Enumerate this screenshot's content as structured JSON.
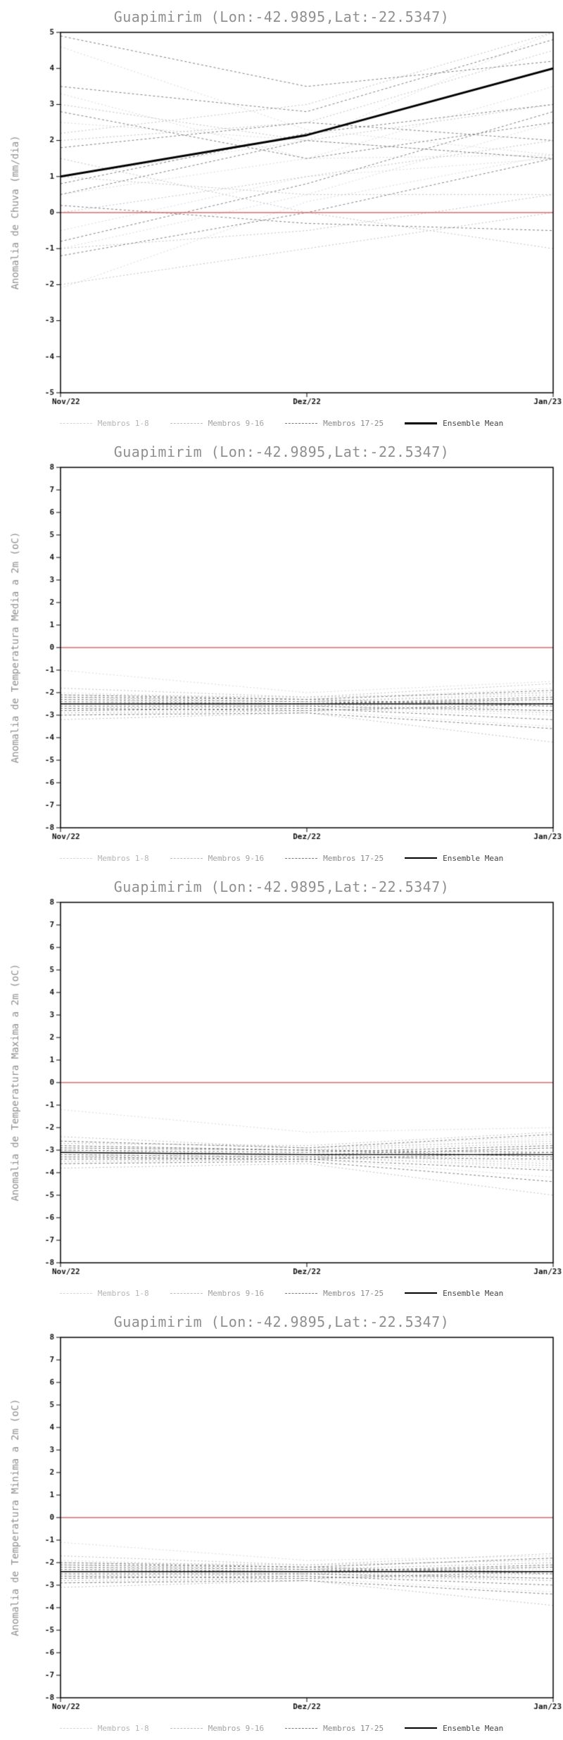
{
  "chart_data": [
    {
      "type": "line",
      "title": "Guapimirim (Lon:-42.9895,Lat:-22.5347)",
      "ylabel": "Anomalia de Chuva (mm/dia)",
      "x": [
        "Nov/22",
        "Dez/22",
        "Jan/23"
      ],
      "ylim": [
        -5,
        5
      ],
      "y_tick_step": 1,
      "grid": false,
      "legend_position": "bottom",
      "zero_line": {
        "value": 0,
        "color": "#d96a6a"
      },
      "groups": [
        {
          "label": "Membros 1-8",
          "color": "#d6d6d6",
          "dash": [
            2,
            3
          ],
          "label_color": "#b5b5b5",
          "members": [
            [
              3.3,
              1.5,
              1.6
            ],
            [
              -2.1,
              0.3,
              1.6
            ],
            [
              1.0,
              2.0,
              5.0
            ],
            [
              -1.0,
              0.5,
              2.5
            ],
            [
              2.5,
              2.0,
              1.5
            ],
            [
              0.5,
              1.5,
              3.5
            ],
            [
              -0.5,
              1.0,
              1.5
            ],
            [
              4.6,
              2.3,
              1.6
            ]
          ]
        },
        {
          "label": "Membros 9-16",
          "color": "#bdbdbd",
          "dash": [
            2,
            3
          ],
          "label_color": "#a3a3a3",
          "members": [
            [
              2.0,
              2.5,
              4.5
            ],
            [
              1.5,
              0.0,
              -1.0
            ],
            [
              -1.0,
              -0.5,
              0.5
            ],
            [
              0.0,
              1.0,
              2.0
            ],
            [
              3.0,
              2.0,
              3.0
            ],
            [
              -2.0,
              -1.0,
              0.0
            ],
            [
              1.0,
              0.5,
              0.5
            ],
            [
              2.2,
              3.0,
              5.0
            ]
          ]
        },
        {
          "label": "Membros 17-25",
          "color": "#7d7d7d",
          "dash": [
            3,
            3
          ],
          "label_color": "#8a8a8a",
          "members": [
            [
              4.9,
              3.5,
              4.2
            ],
            [
              0.8,
              2.2,
              3.0
            ],
            [
              -1.2,
              0.0,
              1.5
            ],
            [
              2.8,
              1.5,
              2.5
            ],
            [
              0.2,
              -0.3,
              -0.5
            ],
            [
              1.8,
              2.5,
              2.0
            ],
            [
              -0.8,
              0.8,
              2.8
            ],
            [
              3.5,
              2.8,
              4.8
            ],
            [
              0.5,
              2.0,
              1.5
            ]
          ]
        }
      ],
      "mean": {
        "label": "Ensemble Mean",
        "color": "#000000",
        "width": 3,
        "sample_width": 3,
        "label_color": "#444444",
        "values": [
          1.0,
          2.15,
          4.0
        ]
      }
    },
    {
      "type": "line",
      "title": "Guapimirim (Lon:-42.9895,Lat:-22.5347)",
      "ylabel": "Anomalia de Temperatura Media a 2m (oC)",
      "x": [
        "Nov/22",
        "Dez/22",
        "Jan/23"
      ],
      "ylim": [
        -8,
        8
      ],
      "y_tick_step": 1,
      "grid": false,
      "legend_position": "bottom",
      "zero_line": {
        "value": 0,
        "color": "#d96a6a"
      },
      "groups": [
        {
          "label": "Membros 1-8",
          "color": "#d6d6d6",
          "dash": [
            2,
            3
          ],
          "label_color": "#b5b5b5",
          "members": [
            [
              -1.0,
              -2.0,
              -1.5
            ],
            [
              -2.2,
              -2.4,
              -2.0
            ],
            [
              -2.5,
              -2.5,
              -2.6
            ],
            [
              -2.8,
              -2.6,
              -2.2
            ],
            [
              -3.0,
              -2.8,
              -3.5
            ],
            [
              -2.0,
              -2.3,
              -1.8
            ],
            [
              -2.4,
              -2.5,
              -2.4
            ],
            [
              -2.6,
              -2.7,
              -3.0
            ]
          ]
        },
        {
          "label": "Membros 9-16",
          "color": "#bdbdbd",
          "dash": [
            2,
            3
          ],
          "label_color": "#a3a3a3",
          "members": [
            [
              -2.1,
              -2.2,
              -1.6
            ],
            [
              -2.3,
              -2.5,
              -2.8
            ],
            [
              -2.7,
              -2.6,
              -2.3
            ],
            [
              -2.9,
              -2.8,
              -2.6
            ],
            [
              -2.2,
              -2.4,
              -2.1
            ],
            [
              -2.5,
              -2.6,
              -2.9
            ],
            [
              -3.2,
              -2.9,
              -4.2
            ],
            [
              -1.8,
              -2.2,
              -2.0
            ]
          ]
        },
        {
          "label": "Membros 17-25",
          "color": "#7d7d7d",
          "dash": [
            3,
            3
          ],
          "label_color": "#8a8a8a",
          "members": [
            [
              -2.4,
              -2.5,
              -2.2
            ],
            [
              -2.6,
              -2.6,
              -2.8
            ],
            [
              -2.3,
              -2.4,
              -2.5
            ],
            [
              -2.8,
              -2.7,
              -3.2
            ],
            [
              -2.5,
              -2.5,
              -2.3
            ],
            [
              -2.2,
              -2.3,
              -2.6
            ],
            [
              -2.7,
              -2.8,
              -2.5
            ],
            [
              -3.0,
              -2.9,
              -3.6
            ],
            [
              -2.1,
              -2.3,
              -1.9
            ]
          ]
        }
      ],
      "mean": {
        "label": "Ensemble Mean",
        "color": "#000000",
        "width": 1.4,
        "sample_width": 2,
        "label_color": "#444444",
        "values": [
          -2.5,
          -2.5,
          -2.5
        ]
      }
    },
    {
      "type": "line",
      "title": "Guapimirim (Lon:-42.9895,Lat:-22.5347)",
      "ylabel": "Anomalia de Temperatura Maxima a 2m (oC)",
      "x": [
        "Nov/22",
        "Dez/22",
        "Jan/23"
      ],
      "ylim": [
        -8,
        8
      ],
      "y_tick_step": 1,
      "grid": false,
      "legend_position": "bottom",
      "zero_line": {
        "value": 0,
        "color": "#d96a6a"
      },
      "groups": [
        {
          "label": "Membros 1-8",
          "color": "#d6d6d6",
          "dash": [
            2,
            3
          ],
          "label_color": "#b5b5b5",
          "members": [
            [
              -1.2,
              -2.2,
              -2.0
            ],
            [
              -2.8,
              -3.0,
              -2.5
            ],
            [
              -3.0,
              -3.2,
              -3.5
            ],
            [
              -3.3,
              -3.1,
              -2.8
            ],
            [
              -3.6,
              -3.4,
              -4.2
            ],
            [
              -2.6,
              -2.9,
              -2.4
            ],
            [
              -3.1,
              -3.2,
              -3.0
            ],
            [
              -3.4,
              -3.3,
              -3.8
            ]
          ]
        },
        {
          "label": "Membros 9-16",
          "color": "#bdbdbd",
          "dash": [
            2,
            3
          ],
          "label_color": "#a3a3a3",
          "members": [
            [
              -2.7,
              -2.8,
              -2.2
            ],
            [
              -3.0,
              -3.2,
              -3.6
            ],
            [
              -3.3,
              -3.3,
              -2.9
            ],
            [
              -3.5,
              -3.4,
              -3.2
            ],
            [
              -2.9,
              -3.0,
              -2.7
            ],
            [
              -3.2,
              -3.3,
              -3.7
            ],
            [
              -3.8,
              -3.6,
              -5.0
            ],
            [
              -2.4,
              -2.9,
              -2.6
            ]
          ]
        },
        {
          "label": "Membros 17-25",
          "color": "#7d7d7d",
          "dash": [
            3,
            3
          ],
          "label_color": "#8a8a8a",
          "members": [
            [
              -3.0,
              -3.1,
              -2.8
            ],
            [
              -3.2,
              -3.3,
              -3.4
            ],
            [
              -2.9,
              -3.0,
              -3.1
            ],
            [
              -3.4,
              -3.4,
              -3.9
            ],
            [
              -3.1,
              -3.2,
              -2.9
            ],
            [
              -2.8,
              -3.0,
              -3.3
            ],
            [
              -3.3,
              -3.4,
              -3.1
            ],
            [
              -3.6,
              -3.5,
              -4.4
            ],
            [
              -2.6,
              -2.9,
              -2.3
            ]
          ]
        }
      ],
      "mean": {
        "label": "Ensemble Mean",
        "color": "#000000",
        "width": 1.4,
        "sample_width": 2,
        "label_color": "#444444",
        "values": [
          -3.1,
          -3.2,
          -3.2
        ]
      }
    },
    {
      "type": "line",
      "title": "Guapimirim (Lon:-42.9895,Lat:-22.5347)",
      "ylabel": "Anomalia de Temperatura Minima a 2m (oC)",
      "x": [
        "Nov/22",
        "Dez/22",
        "Jan/23"
      ],
      "ylim": [
        -8,
        8
      ],
      "y_tick_step": 1,
      "grid": false,
      "legend_position": "bottom",
      "zero_line": {
        "value": 0,
        "color": "#d96a6a"
      },
      "groups": [
        {
          "label": "Membros 1-8",
          "color": "#d6d6d6",
          "dash": [
            2,
            3
          ],
          "label_color": "#b5b5b5",
          "members": [
            [
              -1.1,
              -1.9,
              -1.7
            ],
            [
              -2.1,
              -2.3,
              -2.0
            ],
            [
              -2.4,
              -2.4,
              -2.5
            ],
            [
              -2.7,
              -2.5,
              -2.1
            ],
            [
              -2.9,
              -2.7,
              -3.3
            ],
            [
              -1.9,
              -2.2,
              -1.8
            ],
            [
              -2.3,
              -2.4,
              -2.3
            ],
            [
              -2.5,
              -2.6,
              -2.8
            ]
          ]
        },
        {
          "label": "Membros 9-16",
          "color": "#bdbdbd",
          "dash": [
            2,
            3
          ],
          "label_color": "#a3a3a3",
          "members": [
            [
              -2.0,
              -2.1,
              -1.6
            ],
            [
              -2.2,
              -2.4,
              -2.7
            ],
            [
              -2.6,
              -2.5,
              -2.2
            ],
            [
              -2.8,
              -2.7,
              -2.5
            ],
            [
              -2.1,
              -2.3,
              -2.0
            ],
            [
              -2.4,
              -2.5,
              -2.8
            ],
            [
              -3.1,
              -2.8,
              -3.9
            ],
            [
              -1.7,
              -2.1,
              -1.9
            ]
          ]
        },
        {
          "label": "Membros 17-25",
          "color": "#7d7d7d",
          "dash": [
            3,
            3
          ],
          "label_color": "#8a8a8a",
          "members": [
            [
              -2.3,
              -2.4,
              -2.1
            ],
            [
              -2.5,
              -2.5,
              -2.7
            ],
            [
              -2.2,
              -2.3,
              -2.4
            ],
            [
              -2.7,
              -2.6,
              -3.0
            ],
            [
              -2.4,
              -2.4,
              -2.2
            ],
            [
              -2.1,
              -2.2,
              -2.5
            ],
            [
              -2.6,
              -2.7,
              -2.4
            ],
            [
              -2.9,
              -2.8,
              -3.4
            ],
            [
              -2.0,
              -2.2,
              -1.8
            ]
          ]
        }
      ],
      "mean": {
        "label": "Ensemble Mean",
        "color": "#000000",
        "width": 1.4,
        "sample_width": 2,
        "label_color": "#444444",
        "values": [
          -2.4,
          -2.4,
          -2.4
        ]
      }
    }
  ]
}
